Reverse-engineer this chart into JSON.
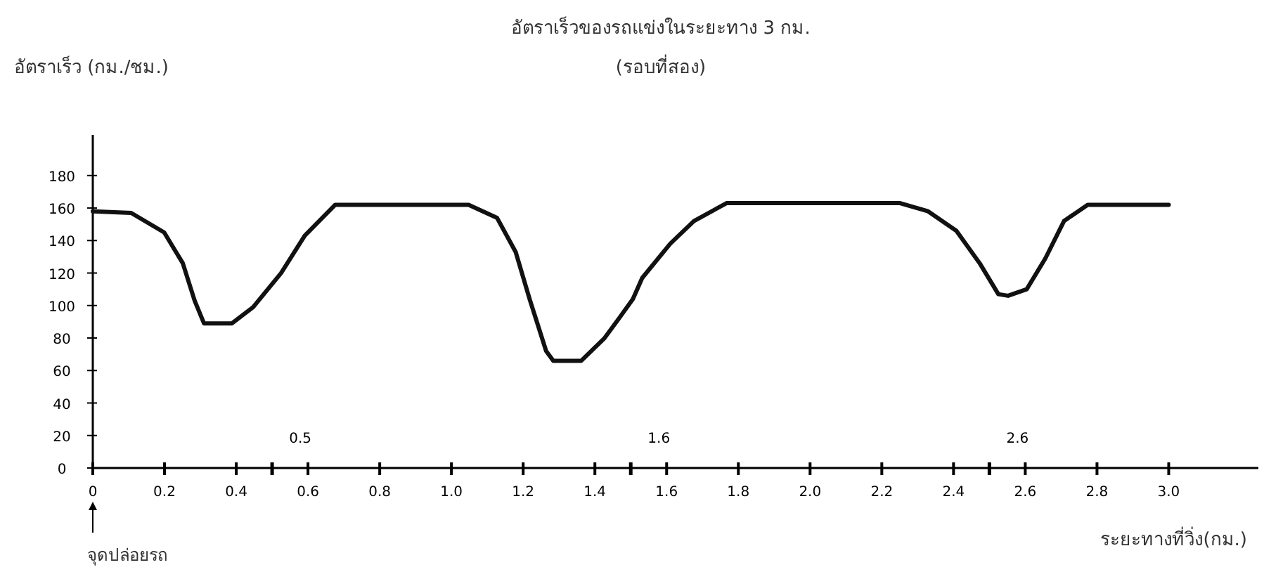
{
  "chart_data": {
    "type": "line",
    "title": "อัตราเร็วของรถแข่งในระยะทาง 3 กม.",
    "subtitle": "(รอบที่สอง)",
    "ylabel": "อัตราเร็ว (กม./ชม.)",
    "xlabel": "ระยะทางที่วิ่ง(กม.)",
    "x": [
      0,
      0.107,
      0.199,
      0.251,
      0.284,
      0.31,
      0.388,
      0.447,
      0.525,
      0.591,
      0.676,
      1.048,
      1.127,
      1.179,
      1.218,
      1.264,
      1.284,
      1.362,
      1.427,
      1.467,
      1.506,
      1.532,
      1.61,
      1.676,
      1.767,
      2.251,
      2.329,
      2.408,
      2.473,
      2.525,
      2.552,
      2.604,
      2.656,
      2.708,
      2.774,
      3.0
    ],
    "series": [
      {
        "color": "#111111",
        "values": [
          158,
          157,
          145,
          126,
          103,
          89,
          89,
          99,
          120,
          143,
          162,
          162,
          154,
          133,
          104,
          72,
          66,
          66,
          80,
          92,
          104,
          117,
          138,
          152,
          163,
          163,
          158,
          146,
          126,
          107,
          106,
          110,
          129,
          152,
          162,
          162
        ]
      }
    ],
    "xlim": [
      0,
      3.25
    ],
    "ylim": [
      0,
      205
    ],
    "xticks": [
      {
        "value": 0,
        "label": "0"
      },
      {
        "value": 0.2,
        "label": "0.2"
      },
      {
        "value": 0.4,
        "label": "0.4"
      },
      {
        "value": 0.5,
        "label": null
      },
      {
        "value": 0.6,
        "label": "0.6"
      },
      {
        "value": 0.8,
        "label": "0.8"
      },
      {
        "value": 1,
        "label": "1.0"
      },
      {
        "value": 1.2,
        "label": "1.2"
      },
      {
        "value": 1.4,
        "label": "1.4"
      },
      {
        "value": 1.5,
        "label": null
      },
      {
        "value": 1.6,
        "label": "1.6"
      },
      {
        "value": 1.8,
        "label": "1.8"
      },
      {
        "value": 2,
        "label": "2.0"
      },
      {
        "value": 2.2,
        "label": "2.2"
      },
      {
        "value": 2.4,
        "label": "2.4"
      },
      {
        "value": 2.5,
        "label": null
      },
      {
        "value": 2.6,
        "label": "2.6"
      },
      {
        "value": 2.8,
        "label": "2.8"
      },
      {
        "value": 3,
        "label": "3.0"
      }
    ],
    "yticks": [
      0,
      20,
      40,
      60,
      80,
      100,
      120,
      140,
      160,
      180
    ],
    "annotations": [
      "0.5",
      "1.6",
      "2.6",
      "จุดปล่อยรถ"
    ],
    "grid": false,
    "marker": "none",
    "line_style": "solid"
  }
}
